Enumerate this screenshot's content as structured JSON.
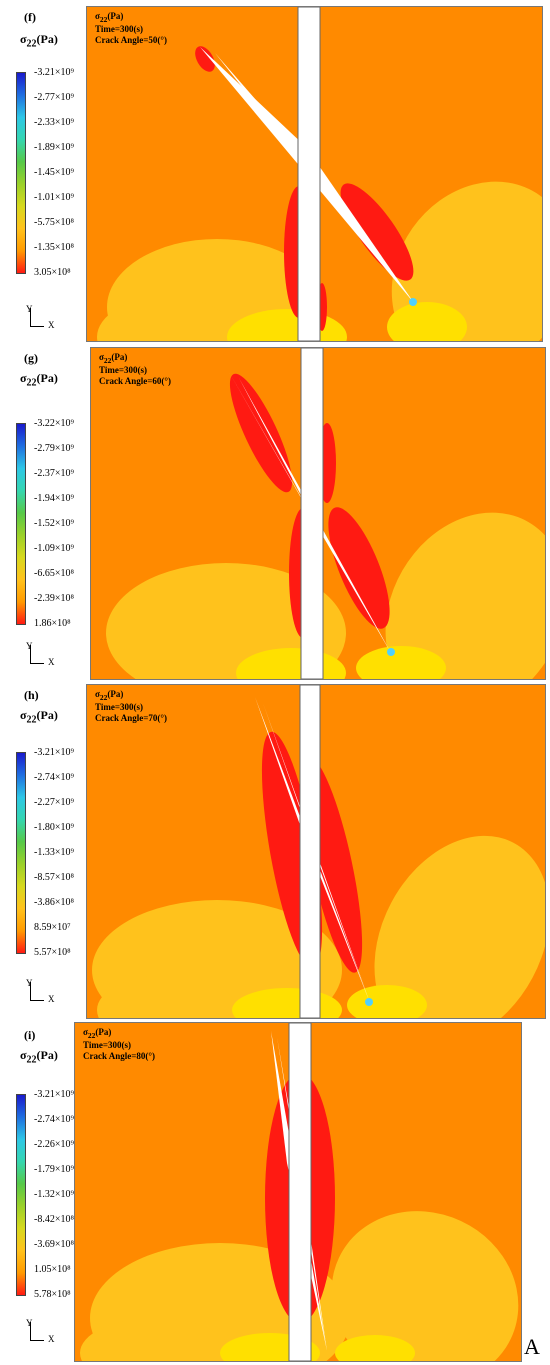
{
  "panels": [
    {
      "label": "(f)",
      "legend_title": "σ22(Pa)",
      "legend_values": [
        "-3.21×10⁹",
        "-2.77×10⁹",
        "-2.33×10⁹",
        "-1.89×10⁹",
        "-1.45×10⁹",
        "-1.01×10⁹",
        "-5.75×10⁸",
        "-1.35×10⁸",
        "3.05×10⁸"
      ],
      "info": {
        "stress": "σ22(Pa)",
        "time": "Time=300(s)",
        "angle": "Crack Angle=50(°)"
      },
      "axis_y": "Y",
      "axis_x": "X"
    },
    {
      "label": "(g)",
      "legend_title": "σ22(Pa)",
      "legend_values": [
        "-3.22×10⁹",
        "-2.79×10⁹",
        "-2.37×10⁹",
        "-1.94×10⁹",
        "-1.52×10⁹",
        "-1.09×10⁹",
        "-6.65×10⁸",
        "-2.39×10⁸",
        "1.86×10⁸"
      ],
      "info": {
        "stress": "σ22(Pa)",
        "time": "Time=300(s)",
        "angle": "Crack Angle=60(°)"
      },
      "axis_y": "Y",
      "axis_x": "X"
    },
    {
      "label": "(h)",
      "legend_title": "σ22(Pa)",
      "legend_values": [
        "-3.21×10⁹",
        "-2.74×10⁹",
        "-2.27×10⁹",
        "-1.80×10⁹",
        "-1.33×10⁹",
        "-8.57×10⁸",
        "-3.86×10⁸",
        "8.59×10⁷",
        "5.57×10⁸"
      ],
      "info": {
        "stress": "σ22(Pa)",
        "time": "Time=300(s)",
        "angle": "Crack Angle=70(°)"
      },
      "axis_y": "Y",
      "axis_x": "X"
    },
    {
      "label": "(i)",
      "legend_title": "σ22(Pa)",
      "legend_values": [
        "-3.21×10⁹",
        "-2.74×10⁹",
        "-2.26×10⁹",
        "-1.79×10⁹",
        "-1.32×10⁹",
        "-8.42×10⁸",
        "-3.69×10⁸",
        "1.05×10⁸",
        "5.78×10⁸"
      ],
      "info": {
        "stress": "σ22(Pa)",
        "time": "Time=300(s)",
        "angle": "Crack Angle=80(°)"
      },
      "axis_y": "Y",
      "axis_x": "X"
    }
  ],
  "corner_label": "A",
  "colors": {
    "background_stress": "#ff8a00",
    "lobe_yellow": "#ffc21c",
    "inner_yellow": "#ffe000",
    "tension_red": "#ff1a12",
    "wellbore": "#ffffff",
    "tip_blue": "#4fd0ff",
    "scale": [
      "#1a1acc",
      "#1f6fe0",
      "#2ec7e6",
      "#35d6b0",
      "#57c949",
      "#9bd12a",
      "#d7d81e",
      "#ffc21c",
      "#ff1a12"
    ]
  }
}
